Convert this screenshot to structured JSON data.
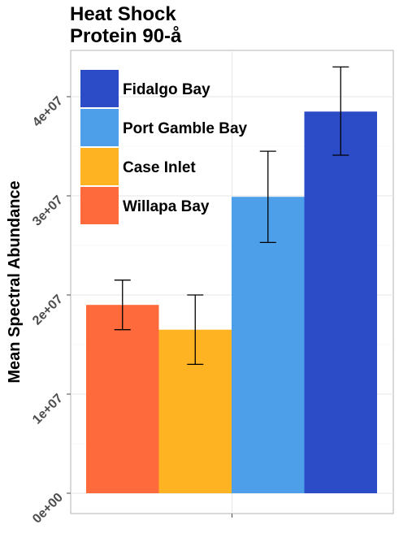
{
  "chart_data": {
    "type": "bar",
    "title": [
      "Heat Shock",
      "Protein 90-å"
    ],
    "ylabel": "Mean Spectral Abundance",
    "xlabel": "",
    "ylim": [
      0,
      46500000
    ],
    "yticks": [
      0,
      10000000,
      20000000,
      30000000,
      40000000
    ],
    "ytick_labels": [
      "0e+00",
      "1e+07",
      "2e+07",
      "3e+07",
      "4e+07"
    ],
    "grid": true,
    "legend_position": "top-left (inside)",
    "series": [
      {
        "name": "Willapa Bay",
        "value": 19000000,
        "error_low": 16500000,
        "error_high": 21500000,
        "color": "#FF6A3C"
      },
      {
        "name": "Case Inlet",
        "value": 16500000,
        "error_low": 13000000,
        "error_high": 20000000,
        "color": "#FDB322"
      },
      {
        "name": "Port Gamble Bay",
        "value": 29900000,
        "error_low": 25300000,
        "error_high": 34500000,
        "color": "#4D9FEA"
      },
      {
        "name": "Fidalgo Bay",
        "value": 38500000,
        "error_low": 34100000,
        "error_high": 43000000,
        "color": "#2C4BC6"
      }
    ],
    "legend_order": [
      "Fidalgo Bay",
      "Port Gamble Bay",
      "Case Inlet",
      "Willapa Bay"
    ]
  }
}
